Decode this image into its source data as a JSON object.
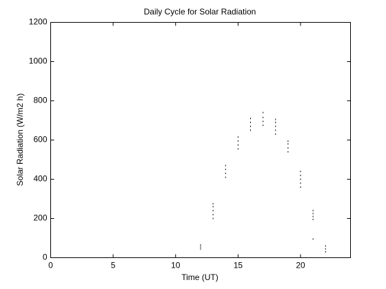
{
  "chart_data": {
    "type": "scatter",
    "title": "Daily Cycle for Solar Radiation",
    "x_label": "Time (UT)",
    "y_label": "Solar Radiation (W/m2 h)",
    "x": [
      12,
      12,
      12,
      13,
      13,
      13,
      13,
      13,
      14,
      14,
      14,
      14,
      15,
      15,
      15,
      15,
      16,
      16,
      16,
      16,
      17,
      17,
      17,
      17,
      18,
      18,
      18,
      18,
      18,
      19,
      19,
      19,
      19,
      20,
      20,
      20,
      20,
      20,
      21,
      21,
      21,
      21,
      21,
      22,
      22,
      22
    ],
    "y": [
      45,
      55,
      65,
      200,
      220,
      240,
      260,
      275,
      410,
      430,
      450,
      470,
      555,
      575,
      595,
      615,
      650,
      670,
      690,
      710,
      675,
      695,
      715,
      740,
      630,
      650,
      670,
      690,
      705,
      540,
      560,
      580,
      595,
      360,
      380,
      400,
      420,
      440,
      95,
      195,
      210,
      225,
      240,
      30,
      45,
      60
    ],
    "color": "#000000",
    "xlim": [
      0,
      24
    ],
    "xticks": [
      0,
      5,
      10,
      15,
      20
    ],
    "ylim": [
      0,
      1200
    ],
    "yticks": [
      0,
      200,
      400,
      600,
      800,
      1000,
      1200
    ]
  }
}
